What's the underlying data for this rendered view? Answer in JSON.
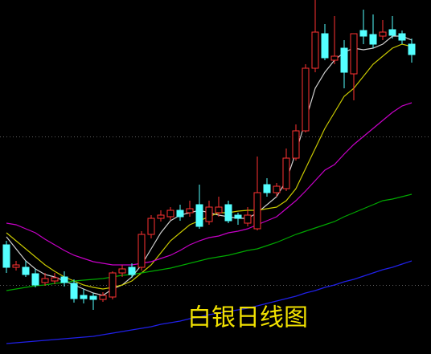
{
  "chart_data": {
    "type": "candlestick",
    "title": "白银日线图",
    "open": [
      136,
      108,
      108,
      100,
      89,
      91,
      96,
      88,
      73,
      72,
      68,
      71,
      101,
      108,
      108,
      149,
      169,
      171,
      179,
      176,
      186,
      165,
      176,
      186,
      173,
      163,
      156,
      211,
      201,
      206,
      244,
      278,
      356,
      399,
      366,
      381,
      349,
      403,
      398,
      396,
      404,
      399,
      386
    ],
    "high": [
      141,
      116,
      116,
      106,
      101,
      101,
      103,
      93,
      81,
      76,
      77,
      103,
      111,
      113,
      153,
      173,
      179,
      183,
      186,
      191,
      211,
      191,
      196,
      191,
      176,
      183,
      246,
      219,
      213,
      256,
      286,
      361,
      441,
      411,
      421,
      391,
      399,
      429,
      423,
      416,
      421,
      403,
      393
    ],
    "low": [
      101,
      104,
      96,
      83,
      85,
      87,
      84,
      64,
      63,
      55,
      65,
      68,
      96,
      95,
      104,
      144,
      165,
      167,
      166,
      171,
      156,
      161,
      171,
      163,
      161,
      159,
      154,
      196,
      196,
      203,
      241,
      276,
      351,
      366,
      361,
      331,
      316,
      386,
      381,
      391,
      393,
      386,
      363
    ],
    "close": [
      108,
      111,
      99,
      86,
      94,
      95,
      89,
      69,
      69,
      68,
      73,
      101,
      106,
      99,
      149,
      169,
      173,
      179,
      171,
      181,
      159,
      183,
      183,
      166,
      169,
      173,
      201,
      201,
      209,
      244,
      278,
      356,
      401,
      369,
      371,
      351,
      399,
      396,
      386,
      401,
      397,
      391,
      373
    ],
    "up_color": "#ff3232",
    "down_color": "#54ffff",
    "series": [
      {
        "color": "#d0d0d0",
        "values": [
          146,
          131,
          116,
          106,
          99,
          96,
          91,
          86,
          81,
          76,
          73,
          81,
          86,
          96,
          111,
          131,
          151,
          166,
          173,
          176,
          179,
          176,
          173,
          171,
          169,
          169,
          176,
          186,
          196,
          216,
          251,
          291,
          331,
          351,
          366,
          376,
          381,
          379,
          381,
          386,
          396,
          396,
          391
        ]
      },
      {
        "color": "#c8c800",
        "values": [
          151,
          141,
          131,
          121,
          111,
          103,
          96,
          91,
          86,
          83,
          81,
          83,
          86,
          91,
          101,
          111,
          126,
          141,
          151,
          161,
          166,
          171,
          176,
          176,
          178,
          179,
          179,
          181,
          183,
          191,
          206,
          231,
          256,
          281,
          301,
          321,
          331,
          346,
          361,
          371,
          381,
          386,
          383
        ]
      },
      {
        "color": "#c800c8",
        "values": [
          163,
          161,
          156,
          151,
          143,
          136,
          129,
          123,
          119,
          115,
          113,
          111,
          111,
          111,
          113,
          115,
          119,
          123,
          129,
          136,
          141,
          145,
          147,
          151,
          153,
          156,
          161,
          166,
          171,
          181,
          191,
          203,
          216,
          229,
          236,
          249,
          261,
          271,
          281,
          291,
          301,
          309,
          313
        ]
      },
      {
        "color": "#00a800",
        "values": [
          79,
          81,
          83,
          85,
          86,
          88,
          89,
          91,
          92,
          93,
          94,
          96,
          98,
          99,
          101,
          103,
          105,
          107,
          110,
          113,
          116,
          119,
          121,
          123,
          126,
          129,
          131,
          135,
          139,
          144,
          149,
          153,
          157,
          161,
          165,
          171,
          176,
          181,
          186,
          191,
          193,
          196,
          199
        ]
      },
      {
        "color": "#2020e8",
        "values": [
          13,
          14,
          15,
          16,
          17,
          18,
          19,
          20,
          21,
          22,
          24,
          26,
          28,
          30,
          32,
          34,
          37,
          39,
          41,
          44,
          46,
          49,
          51,
          53,
          55,
          57,
          60,
          63,
          66,
          69,
          72,
          76,
          79,
          83,
          86,
          90,
          93,
          97,
          101,
          105,
          108,
          112,
          116
        ]
      }
    ],
    "ylim": [
      0,
      441
    ],
    "yticks": [
      86,
      271
    ],
    "grid": true
  }
}
